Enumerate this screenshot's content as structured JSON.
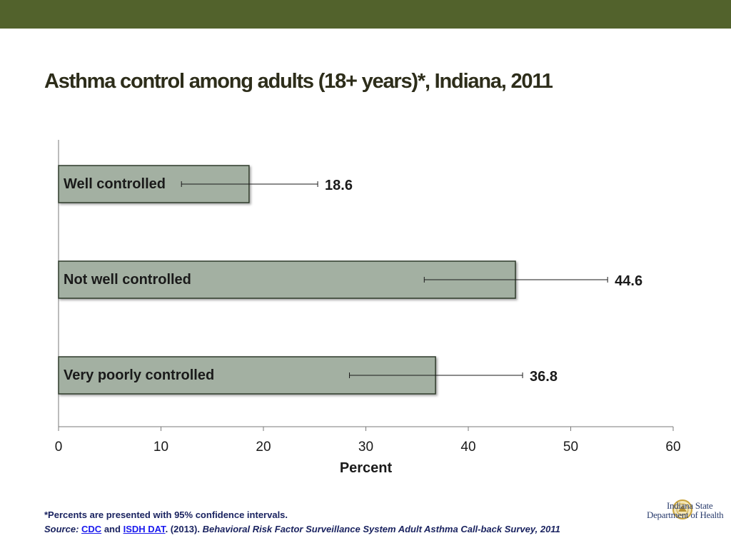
{
  "colors": {
    "top_band": "#52622c",
    "bar_fill": "#a3b0a2",
    "bar_border": "#2f3a2a",
    "title_text": "#2d2d1a",
    "footnote_text": "#1a2360",
    "link": "#1a1aee"
  },
  "title": "Asthma control among adults (18+ years)*, Indiana, 2011",
  "chart_data": {
    "type": "bar",
    "orientation": "horizontal",
    "categories": [
      "Well controlled",
      "Not well controlled",
      "Very poorly controlled"
    ],
    "values": [
      18.6,
      44.6,
      36.8
    ],
    "value_labels": [
      "18.6",
      "44.6",
      "36.8"
    ],
    "ci_low": [
      12.0,
      35.7,
      28.4
    ],
    "ci_high": [
      25.3,
      53.6,
      45.3
    ],
    "xlabel": "Percent",
    "ylabel": "",
    "xlim": [
      0,
      60
    ],
    "xticks": [
      0,
      10,
      20,
      30,
      40,
      50,
      60
    ],
    "xtick_labels": [
      "0",
      "10",
      "20",
      "30",
      "40",
      "50",
      "60"
    ],
    "grid": false,
    "legend": "none"
  },
  "footnote": {
    "note": "*Percents are presented with 95% confidence intervals.",
    "source_label": "Source:",
    "link1": "CDC",
    "and_text": "and",
    "link2": "ISDH DAT",
    "year_text": ". (2013).",
    "citation": "Behavioral Risk Factor Surveillance System Adult Asthma Call-back Survey, 2011"
  },
  "logo": {
    "line1": "Indiana State",
    "line2": "Department of Health",
    "icon": "state-seal-icon"
  }
}
